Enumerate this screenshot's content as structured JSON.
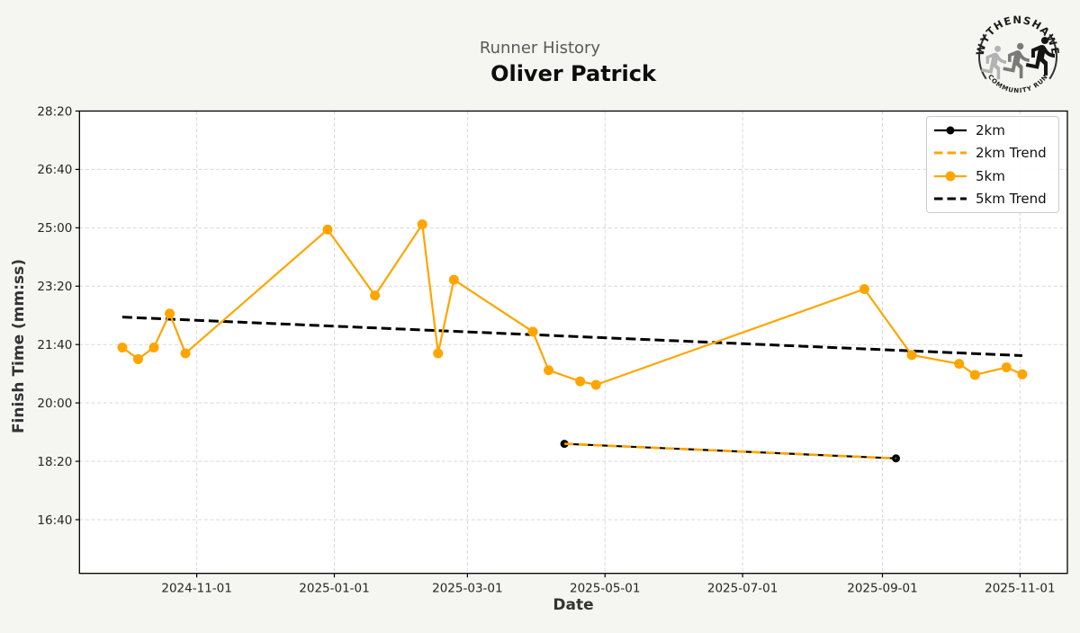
{
  "header": {
    "suptitle": "Runner History",
    "title": "Oliver Patrick"
  },
  "logo": {
    "top_text": "WYTHENSHAWE",
    "bottom_text": "COMMUNITY RUN",
    "runner_colors": [
      "#b3b3b3",
      "#7a7a7a",
      "#151515"
    ]
  },
  "chart_data": {
    "type": "line",
    "subtitle": "Runner History",
    "title": "Oliver Patrick",
    "xlabel": "Date",
    "ylabel": "Finish Time (mm:ss)",
    "xlim": [
      "2024-09-10",
      "2025-11-22"
    ],
    "ylim": [
      "15:08",
      "28:20"
    ],
    "x_ticks": [
      "2024-11-01",
      "2025-01-01",
      "2025-03-01",
      "2025-05-01",
      "2025-07-01",
      "2025-09-01",
      "2025-11-01"
    ],
    "y_ticks": [
      "16:40",
      "18:20",
      "20:00",
      "21:40",
      "23:20",
      "25:00",
      "26:40",
      "28:20"
    ],
    "grid": true,
    "legend_position": "upper right",
    "colors": {
      "accent_orange": "#FFA500",
      "black": "#000000",
      "figure_bg": "#f5f5f2",
      "plot_bg": "#ffffff",
      "grid": "#d9d9d9"
    },
    "series": [
      {
        "name": "2km",
        "color": "#000000",
        "style": "solid",
        "marker": true,
        "points": [
          [
            "2025-04-13",
            "18:50"
          ],
          [
            "2025-09-07",
            "18:25"
          ]
        ]
      },
      {
        "name": "2km Trend",
        "color": "#FFA500",
        "style": "dashed",
        "marker": false,
        "points": [
          [
            "2025-04-13",
            "18:50"
          ],
          [
            "2025-09-07",
            "18:25"
          ]
        ]
      },
      {
        "name": "5km",
        "color": "#FFA500",
        "style": "solid",
        "marker": true,
        "points": [
          [
            "2024-09-29",
            "21:35"
          ],
          [
            "2024-10-06",
            "21:15"
          ],
          [
            "2024-10-13",
            "21:35"
          ],
          [
            "2024-10-20",
            "22:33"
          ],
          [
            "2024-10-27",
            "21:25"
          ],
          [
            "2024-12-29",
            "24:57"
          ],
          [
            "2025-01-19",
            "23:04"
          ],
          [
            "2025-02-09",
            "25:06"
          ],
          [
            "2025-02-16",
            "21:25"
          ],
          [
            "2025-02-23",
            "23:31"
          ],
          [
            "2025-03-30",
            "22:02"
          ],
          [
            "2025-04-06",
            "20:56"
          ],
          [
            "2025-04-20",
            "20:37"
          ],
          [
            "2025-04-27",
            "20:31"
          ],
          [
            "2025-08-24",
            "23:15"
          ],
          [
            "2025-09-14",
            "21:22"
          ],
          [
            "2025-10-05",
            "21:07"
          ],
          [
            "2025-10-12",
            "20:48"
          ],
          [
            "2025-10-26",
            "21:01"
          ],
          [
            "2025-11-02",
            "20:49"
          ]
        ]
      },
      {
        "name": "5km Trend",
        "color": "#000000",
        "style": "dashed",
        "marker": false,
        "points": [
          [
            "2024-09-29",
            "22:27"
          ],
          [
            "2025-11-02",
            "21:21"
          ]
        ]
      }
    ]
  }
}
